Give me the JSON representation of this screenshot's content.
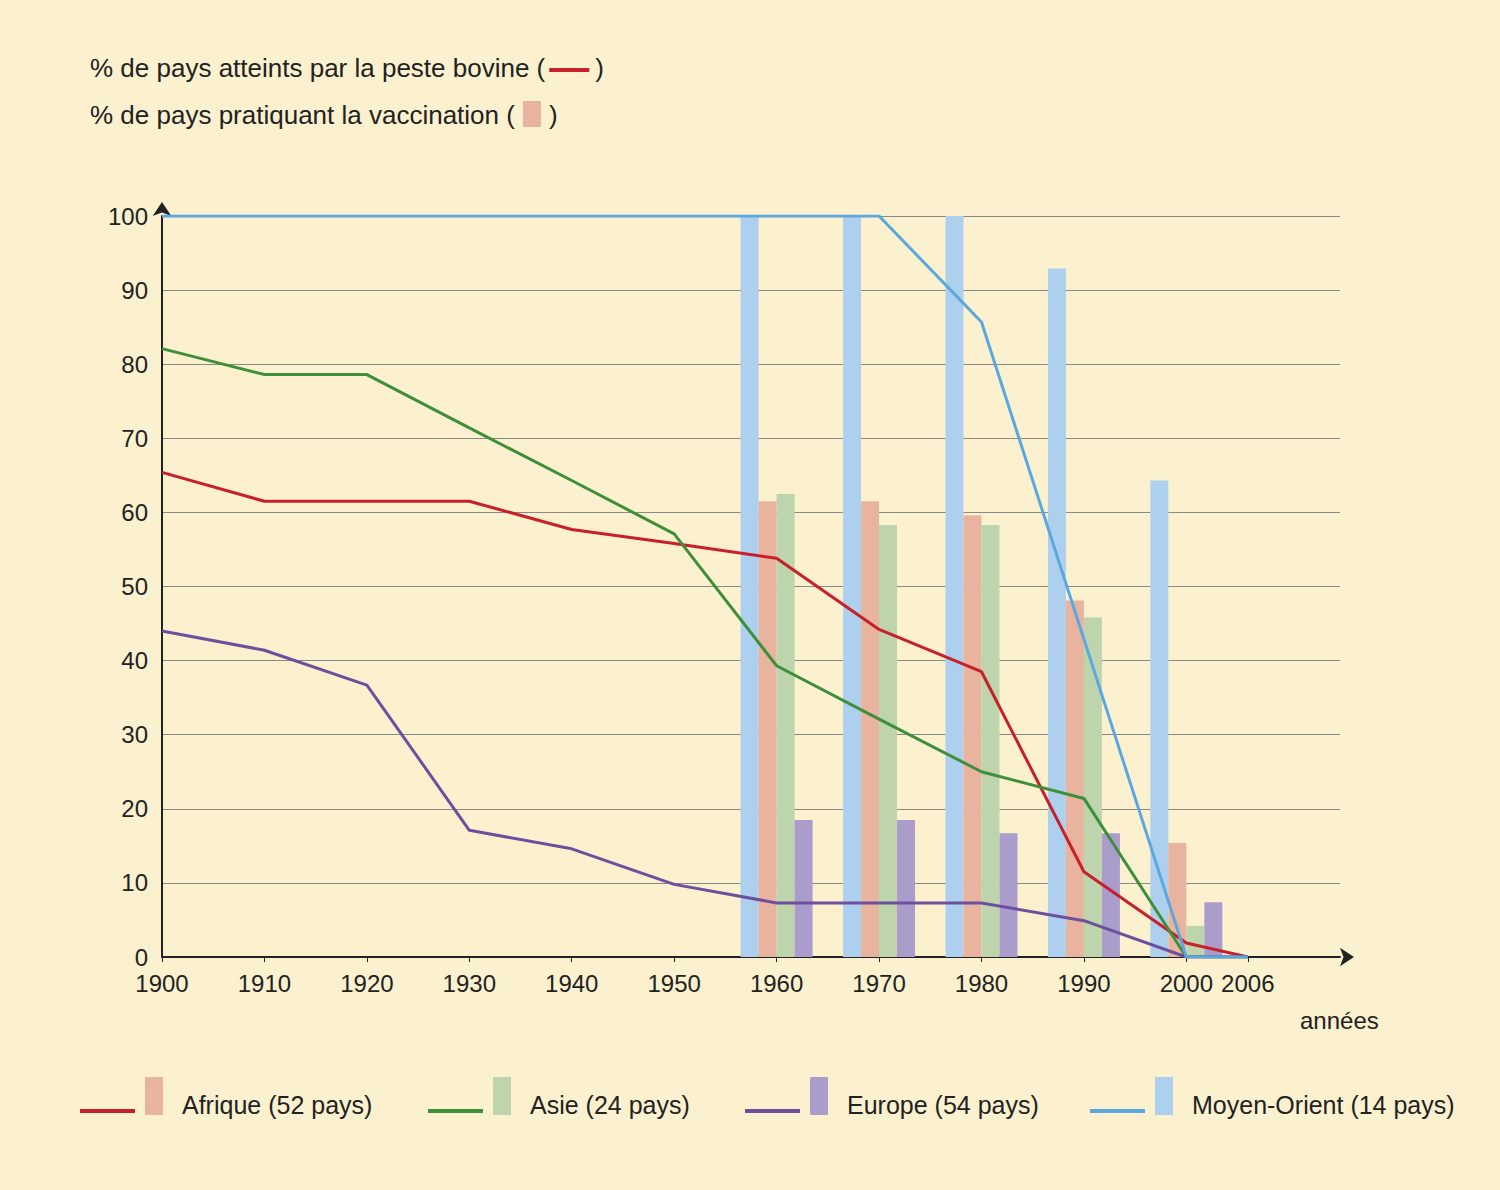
{
  "chart_data": {
    "type": "line",
    "annotations": [
      {
        "before": "% de pays atteints par la peste bovine (",
        "after": ")",
        "marker": "line"
      },
      {
        "before": "% de pays pratiquant la vaccination (",
        "after": ")",
        "marker": "bar"
      }
    ],
    "xlabel": "années",
    "xlim": [
      1900,
      2015
    ],
    "xticks": [
      1900,
      1910,
      1920,
      1930,
      1940,
      1950,
      1960,
      1970,
      1980,
      1990,
      2000,
      2006
    ],
    "ylim": [
      0,
      100
    ],
    "yticks": [
      0,
      10,
      20,
      30,
      40,
      50,
      60,
      70,
      80,
      90,
      100
    ],
    "grid": true,
    "legend": "bottom",
    "series": [
      {
        "name": "Moyen-Orient (14 pays)",
        "type": "bar",
        "color": "#aed0ef",
        "x": [
          1960,
          1970,
          1980,
          1990,
          2000
        ],
        "values": [
          100,
          100,
          100,
          92.9,
          64.3
        ]
      },
      {
        "name": "Afrique (52 pays)",
        "type": "bar",
        "color": "#e8b4a0",
        "x": [
          1960,
          1970,
          1980,
          1990,
          2000
        ],
        "values": [
          61.5,
          61.5,
          59.6,
          48.1,
          15.4
        ]
      },
      {
        "name": "Asie (24 pays)",
        "type": "bar",
        "color": "#bdd4ad",
        "x": [
          1960,
          1970,
          1980,
          1990,
          2000
        ],
        "values": [
          62.5,
          58.3,
          58.3,
          45.8,
          4.2
        ]
      },
      {
        "name": "Europe (54 pays)",
        "type": "bar",
        "color": "#aa9dcc",
        "x": [
          1960,
          1970,
          1980,
          1990,
          2000
        ],
        "values": [
          18.5,
          18.5,
          16.7,
          16.7,
          7.4
        ]
      },
      {
        "name": "Afrique (52 pays)",
        "type": "line",
        "color": "#c8202a",
        "x": [
          1900,
          1910,
          1920,
          1930,
          1940,
          1950,
          1960,
          1970,
          1980,
          1990,
          2000,
          2006
        ],
        "values": [
          65.4,
          61.5,
          61.5,
          61.5,
          57.7,
          55.8,
          53.8,
          44.2,
          38.5,
          11.5,
          1.9,
          0
        ]
      },
      {
        "name": "Asie (24 pays)",
        "type": "line",
        "color": "#3f8f3a",
        "x": [
          1900,
          1910,
          1920,
          1930,
          1940,
          1950,
          1960,
          1970,
          1980,
          1990,
          2000,
          2006
        ],
        "values": [
          82.1,
          78.6,
          78.6,
          71.4,
          64.3,
          57.1,
          39.3,
          32.1,
          25,
          21.4,
          0,
          0
        ]
      },
      {
        "name": "Europe (54 pays)",
        "type": "line",
        "color": "#6e4f9e",
        "x": [
          1900,
          1910,
          1920,
          1930,
          1940,
          1950,
          1960,
          1970,
          1980,
          1990,
          2000,
          2006
        ],
        "values": [
          44,
          41.4,
          36.7,
          17.1,
          14.6,
          9.8,
          7.3,
          7.3,
          7.3,
          4.9,
          0,
          0
        ]
      },
      {
        "name": "Moyen-Orient (14 pays)",
        "type": "line",
        "color": "#5aa8df",
        "x": [
          1900,
          1910,
          1920,
          1930,
          1940,
          1950,
          1960,
          1970,
          1980,
          1990,
          2000,
          2006
        ],
        "values": [
          100,
          100,
          100,
          100,
          100,
          100,
          100,
          100,
          85.7,
          42.9,
          0,
          0
        ]
      }
    ]
  }
}
